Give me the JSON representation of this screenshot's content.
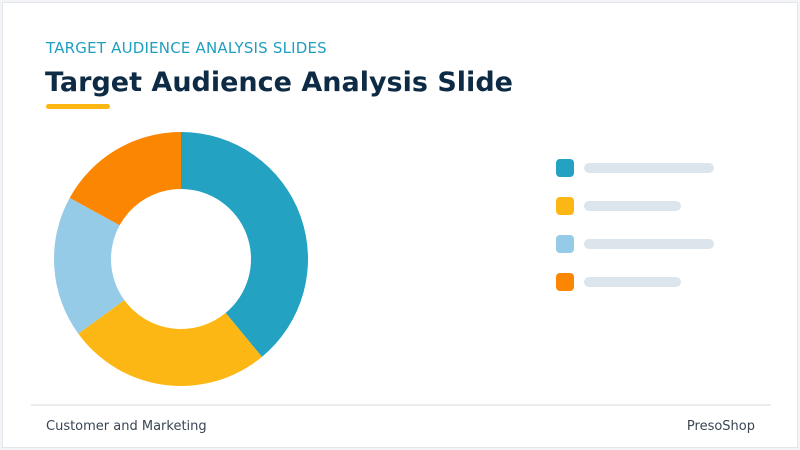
{
  "chart_data": {
    "type": "pie",
    "subtitle": "TARGET AUDIENCE ANALYSIS SLIDES",
    "title": "Target Audience Analysis Slide",
    "values": [
      39,
      26,
      18,
      17
    ],
    "colors": [
      "#23a2c1",
      "#fdb714",
      "#95cbe6",
      "#fb8601"
    ]
  },
  "footer": {
    "left": "Customer and Marketing",
    "right": "PresoShop"
  }
}
